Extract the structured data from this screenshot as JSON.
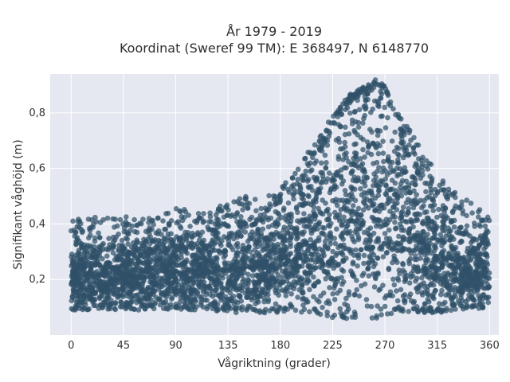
{
  "chart_data": {
    "type": "scatter",
    "title_line1": "År 1979 - 2019",
    "title_line2": "Koordinat (Sweref 99 TM): E 368497, N 6148770",
    "xlabel": "Vågriktning (grader)",
    "ylabel": "Signifikant våghöjd (m)",
    "xlim": [
      -18,
      368
    ],
    "ylim": [
      0.0,
      0.94
    ],
    "xticks": [
      0,
      45,
      90,
      135,
      180,
      225,
      270,
      315,
      360
    ],
    "xtick_labels": [
      "0",
      "45",
      "90",
      "135",
      "180",
      "225",
      "270",
      "315",
      "360"
    ],
    "yticks": [
      0.2,
      0.4,
      0.6,
      0.8
    ],
    "ytick_labels": [
      "0,2",
      "0,4",
      "0,6",
      "0,8"
    ],
    "grid": true,
    "marker_color": "#2f5168",
    "plot_bg": "#e5e8f1",
    "envelope": {
      "x": [
        0,
        15,
        30,
        45,
        60,
        75,
        90,
        105,
        120,
        135,
        150,
        165,
        180,
        195,
        210,
        225,
        240,
        255,
        262,
        270,
        285,
        300,
        315,
        330,
        345,
        360
      ],
      "low": [
        0.09,
        0.09,
        0.09,
        0.09,
        0.09,
        0.09,
        0.09,
        0.09,
        0.09,
        0.08,
        0.08,
        0.08,
        0.08,
        0.08,
        0.08,
        0.06,
        0.06,
        0.06,
        0.06,
        0.07,
        0.08,
        0.08,
        0.08,
        0.09,
        0.09,
        0.1
      ],
      "high": [
        0.33,
        0.33,
        0.33,
        0.33,
        0.34,
        0.35,
        0.36,
        0.37,
        0.38,
        0.4,
        0.41,
        0.42,
        0.45,
        0.52,
        0.62,
        0.76,
        0.84,
        0.88,
        0.9,
        0.88,
        0.7,
        0.58,
        0.48,
        0.4,
        0.36,
        0.34
      ],
      "max": [
        0.41,
        0.43,
        0.42,
        0.43,
        0.42,
        0.43,
        0.46,
        0.45,
        0.45,
        0.48,
        0.5,
        0.49,
        0.53,
        0.6,
        0.7,
        0.79,
        0.87,
        0.9,
        0.92,
        0.9,
        0.78,
        0.68,
        0.58,
        0.52,
        0.48,
        0.42
      ]
    }
  }
}
